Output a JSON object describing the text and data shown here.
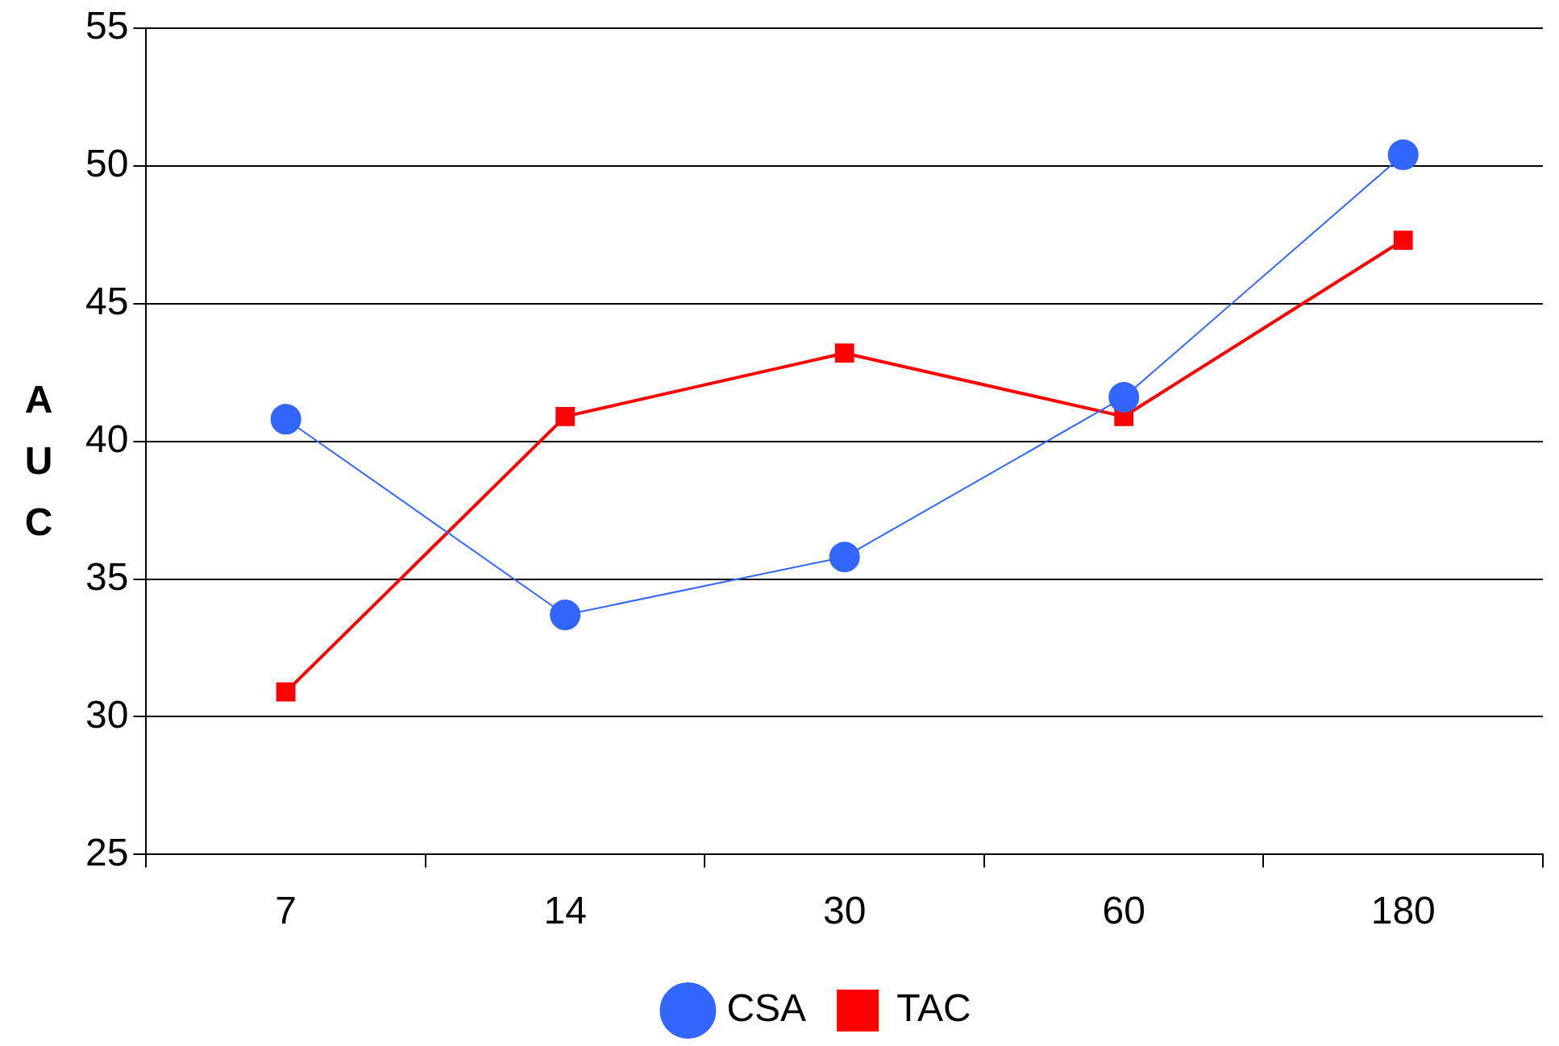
{
  "chart_data": {
    "type": "line",
    "ylabel": "AUC",
    "categories": [
      "7",
      "14",
      "30",
      "60",
      "180"
    ],
    "series": [
      {
        "name": "CSA",
        "color": "#3366ff",
        "values": [
          40.8,
          33.7,
          35.8,
          41.6,
          50.4
        ],
        "marker": "circle"
      },
      {
        "name": "TAC",
        "color": "#ff0000",
        "values": [
          30.9,
          40.9,
          43.2,
          40.9,
          47.3
        ],
        "marker": "square"
      }
    ],
    "ylim": [
      25,
      55
    ],
    "yticks": [
      25,
      30,
      35,
      40,
      45,
      50,
      55
    ],
    "grid": "y",
    "legend": "bottom"
  }
}
